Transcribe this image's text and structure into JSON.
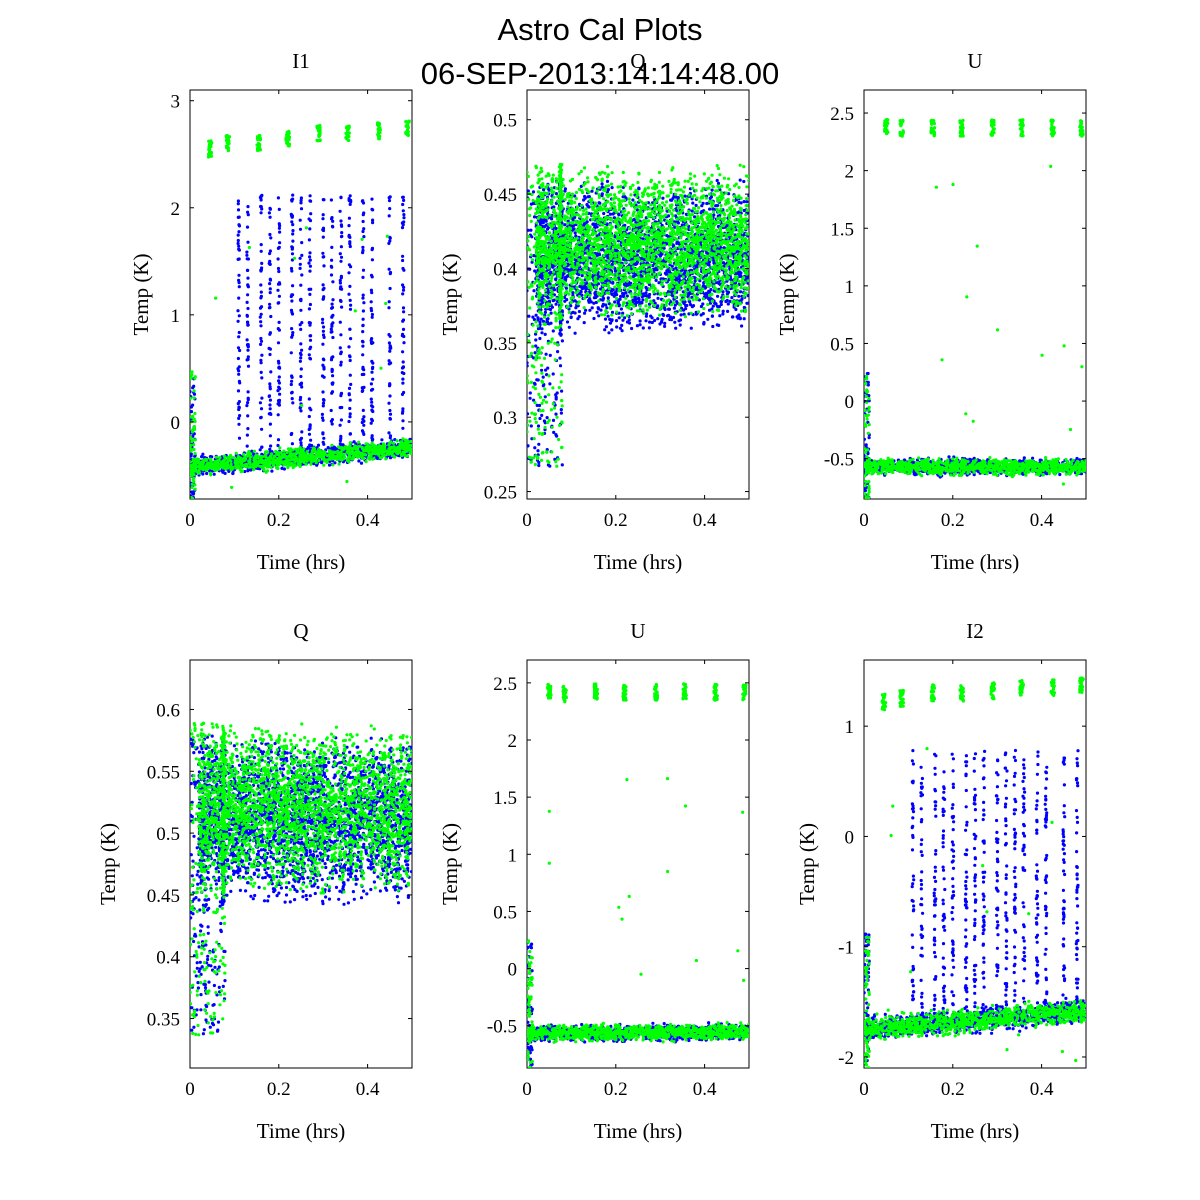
{
  "figure": {
    "title": "Astro Cal Plots",
    "subtitle": "06-SEP-2013:14:14:48.00"
  },
  "colors": {
    "series_a": "#0000ff",
    "series_b": "#00ff00",
    "axes": "#000000",
    "background": "#ffffff"
  },
  "chart_data": [
    {
      "type": "scatter",
      "title": "I1",
      "xlabel": "Time (hrs)",
      "ylabel": "Temp (K)",
      "xlim": [
        0,
        0.5
      ],
      "ylim": [
        -0.72,
        3.1
      ],
      "xticks": [
        0,
        0.2,
        0.4
      ],
      "xtick_labels": [
        "0",
        "0.2",
        "0.4"
      ],
      "yticks": [
        0,
        1,
        2,
        3
      ],
      "ytick_labels": [
        "0",
        "1",
        "2",
        "3"
      ],
      "grid": false,
      "legend": "none",
      "series": [
        {
          "color": "#0000ff",
          "baseline": [
            -0.42,
            -0.24
          ],
          "spread": 0.05,
          "spikes": {
            "xs": [
              0.11,
              0.13,
              0.16,
              0.18,
              0.2,
              0.23,
              0.25,
              0.27,
              0.3,
              0.32,
              0.34,
              0.36,
              0.39,
              0.41,
              0.45,
              0.48
            ],
            "top": 2.12
          }
        },
        {
          "color": "#00ff00",
          "baseline": [
            -0.42,
            -0.24
          ],
          "spread": 0.05,
          "clusters": {
            "xs": [
              0.045,
              0.085,
              0.155,
              0.22,
              0.29,
              0.355,
              0.425,
              0.49
            ],
            "ys": [
              2.55,
              2.6,
              2.6,
              2.65,
              2.7,
              2.7,
              2.72,
              2.75
            ]
          }
        }
      ]
    },
    {
      "type": "scatter",
      "title": "Q",
      "xlabel": "Time (hrs)",
      "ylabel": "Temp (K)",
      "xlim": [
        0,
        0.5
      ],
      "ylim": [
        0.245,
        0.52
      ],
      "xticks": [
        0,
        0.2,
        0.4
      ],
      "xtick_labels": [
        "0",
        "0.2",
        "0.4"
      ],
      "yticks": [
        0.25,
        0.3,
        0.35,
        0.4,
        0.45,
        0.5
      ],
      "ytick_labels": [
        "0.25",
        "0.3",
        "0.35",
        "0.4",
        "0.45",
        "0.5"
      ],
      "grid": false,
      "legend": "none",
      "series": [
        {
          "color": "#0000ff",
          "band": [
            0.355,
            0.46
          ]
        },
        {
          "color": "#00ff00",
          "band": [
            0.365,
            0.47
          ]
        }
      ]
    },
    {
      "type": "scatter",
      "title": "U",
      "xlabel": "Time (hrs)",
      "ylabel": "Temp (K)",
      "xlim": [
        0,
        0.5
      ],
      "ylim": [
        -0.85,
        2.7
      ],
      "xticks": [
        0,
        0.2,
        0.4
      ],
      "xtick_labels": [
        "0",
        "0.2",
        "0.4"
      ],
      "yticks": [
        -0.5,
        0,
        0.5,
        1,
        1.5,
        2,
        2.5
      ],
      "ytick_labels": [
        "-0.5",
        "0",
        "0.5",
        "1",
        "1.5",
        "2",
        "2.5"
      ],
      "grid": false,
      "legend": "none",
      "series": [
        {
          "color": "#0000ff",
          "baseline": [
            -0.57,
            -0.57
          ],
          "spread": 0.04
        },
        {
          "color": "#00ff00",
          "baseline": [
            -0.57,
            -0.57
          ],
          "spread": 0.04,
          "clusters": {
            "xs": [
              0.05,
              0.085,
              0.155,
              0.22,
              0.29,
              0.355,
              0.425,
              0.49
            ],
            "ys": [
              2.38,
              2.37,
              2.37,
              2.37,
              2.37,
              2.37,
              2.37,
              2.37
            ]
          }
        }
      ]
    },
    {
      "type": "scatter",
      "title": "Q",
      "xlabel": "Time (hrs)",
      "ylabel": "Temp (K)",
      "xlim": [
        0,
        0.5
      ],
      "ylim": [
        0.31,
        0.64
      ],
      "xticks": [
        0,
        0.2,
        0.4
      ],
      "xtick_labels": [
        "0",
        "0.2",
        "0.4"
      ],
      "yticks": [
        0.35,
        0.4,
        0.45,
        0.5,
        0.55,
        0.6
      ],
      "ytick_labels": [
        "0.35",
        "0.4",
        "0.45",
        "0.5",
        "0.55",
        "0.6"
      ],
      "grid": false,
      "legend": "none",
      "series": [
        {
          "color": "#0000ff",
          "band": [
            0.44,
            0.58
          ]
        },
        {
          "color": "#00ff00",
          "band": [
            0.45,
            0.59
          ]
        }
      ]
    },
    {
      "type": "scatter",
      "title": "U",
      "xlabel": "Time (hrs)",
      "ylabel": "Temp (K)",
      "xlim": [
        0,
        0.5
      ],
      "ylim": [
        -0.87,
        2.7
      ],
      "xticks": [
        0,
        0.2,
        0.4
      ],
      "xtick_labels": [
        "0",
        "0.2",
        "0.4"
      ],
      "yticks": [
        -0.5,
        0,
        0.5,
        1,
        1.5,
        2,
        2.5
      ],
      "ytick_labels": [
        "-0.5",
        "0",
        "0.5",
        "1",
        "1.5",
        "2",
        "2.5"
      ],
      "grid": false,
      "legend": "none",
      "series": [
        {
          "color": "#0000ff",
          "baseline": [
            -0.57,
            -0.55
          ],
          "spread": 0.04
        },
        {
          "color": "#00ff00",
          "baseline": [
            -0.57,
            -0.55
          ],
          "spread": 0.04,
          "clusters": {
            "xs": [
              0.05,
              0.085,
              0.155,
              0.22,
              0.29,
              0.355,
              0.425,
              0.49
            ],
            "ys": [
              2.42,
              2.4,
              2.42,
              2.42,
              2.42,
              2.42,
              2.42,
              2.42
            ]
          }
        }
      ]
    },
    {
      "type": "scatter",
      "title": "I2",
      "xlabel": "Time (hrs)",
      "ylabel": "Temp (K)",
      "xlim": [
        0,
        0.5
      ],
      "ylim": [
        -2.1,
        1.6
      ],
      "xticks": [
        0,
        0.2,
        0.4
      ],
      "xtick_labels": [
        "0",
        "0.2",
        "0.4"
      ],
      "yticks": [
        -2,
        -1,
        0,
        1
      ],
      "ytick_labels": [
        "-2",
        "-1",
        "0",
        "1"
      ],
      "grid": false,
      "legend": "none",
      "series": [
        {
          "color": "#0000ff",
          "baseline": [
            -1.75,
            -1.58
          ],
          "spread": 0.06,
          "spikes": {
            "xs": [
              0.11,
              0.13,
              0.16,
              0.18,
              0.2,
              0.23,
              0.25,
              0.27,
              0.3,
              0.32,
              0.34,
              0.36,
              0.39,
              0.41,
              0.45,
              0.48
            ],
            "top": 0.78
          }
        },
        {
          "color": "#00ff00",
          "baseline": [
            -1.75,
            -1.58
          ],
          "spread": 0.06,
          "clusters": {
            "xs": [
              0.045,
              0.085,
              0.155,
              0.22,
              0.29,
              0.355,
              0.425,
              0.49
            ],
            "ys": [
              1.22,
              1.25,
              1.3,
              1.3,
              1.32,
              1.35,
              1.35,
              1.38
            ]
          }
        }
      ]
    }
  ]
}
